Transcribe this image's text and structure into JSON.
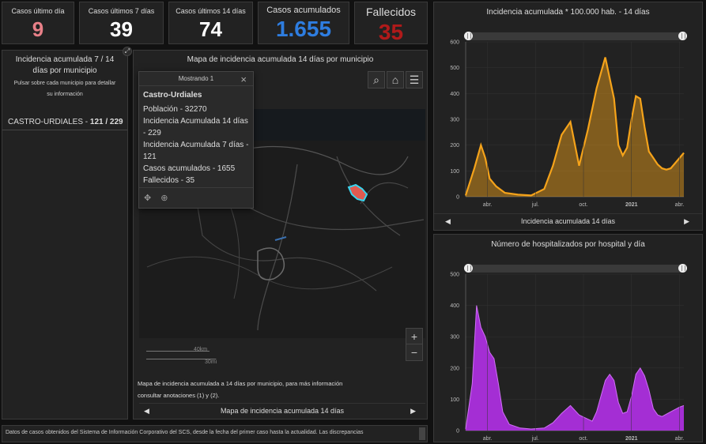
{
  "kpis": [
    {
      "label": "Casos último día",
      "value": "9",
      "color": "#e88088"
    },
    {
      "label": "Casos últimos 7 días",
      "value": "39",
      "color": "#ffffff"
    },
    {
      "label": "Casos últimos 14 días",
      "value": "74",
      "color": "#ffffff"
    },
    {
      "label": "Casos acumulados",
      "value": "1.655",
      "color": "#2e7de0"
    },
    {
      "label": "Fallecidos",
      "value": "35",
      "color": "#b01a1a"
    }
  ],
  "left_panel": {
    "title": "Incidencia acumulada 7 / 14 días por municipio",
    "subtitle": "Pulsar sobre cada municipio para detallar su información",
    "row_name": "CASTRO-URDIALES - ",
    "row_value": "121 / 229"
  },
  "map": {
    "title": "Mapa de incidencia acumulada 14 días por municipio",
    "popup": {
      "header": "Mostrando 1",
      "name": "Castro-Urdiales",
      "lines": [
        "Población - 32270",
        "Incidencia Acumulada 14 días - 229",
        "Incidencia Acumulada 7 días - 121",
        "Casos acumulados - 1655",
        "Fallecidos - 35"
      ]
    },
    "scale_km": "40km",
    "scale_mi": "30mi",
    "description": "Mapa de incidencia acumulada a 14 días por municipio, para más información consultar anotaciones (1) y (2).",
    "footer_label": "Mapa de incidencia acumulada 14 días",
    "zoom_in": "+",
    "zoom_out": "−"
  },
  "bottom_note": "Datos de casos obtenidos del Sistema de Información Corporativo del SCS, desde la fecha del primer caso hasta la actualidad. Las discrepancias",
  "chart_top_footer": "Incidencia acumulada 14 días",
  "chart_data": [
    {
      "type": "area",
      "title": "Incidencia acumulada * 100.000 hab. - 14 días",
      "color": "#f5a31a",
      "ylim": [
        0,
        600
      ],
      "yticks": [
        0,
        100,
        200,
        300,
        400,
        500,
        600
      ],
      "xtick_labels": [
        "abr.",
        "jul.",
        "oct.",
        "2021",
        "abr."
      ],
      "x": [
        0,
        4,
        7,
        9,
        11,
        14,
        18,
        24,
        30,
        36,
        40,
        44,
        48,
        52,
        56,
        60,
        64,
        68,
        70,
        72,
        74,
        76,
        78,
        80,
        82,
        84,
        86,
        88,
        90,
        92,
        94,
        96,
        98,
        100
      ],
      "values": [
        5,
        110,
        200,
        150,
        70,
        40,
        15,
        8,
        5,
        30,
        120,
        240,
        290,
        120,
        260,
        420,
        540,
        380,
        200,
        160,
        190,
        300,
        390,
        380,
        270,
        175,
        150,
        125,
        110,
        105,
        110,
        130,
        150,
        170
      ]
    },
    {
      "type": "area",
      "title": "Número de hospitalizados por hospital y día",
      "color": "#b330e8",
      "color_light": "#d070f5",
      "ylim": [
        0,
        500
      ],
      "yticks": [
        0,
        100,
        200,
        300,
        400,
        500
      ],
      "xtick_labels": [
        "abr.",
        "jul.",
        "oct.",
        "2021",
        "abr."
      ],
      "x": [
        0,
        3,
        5,
        7,
        9,
        11,
        13,
        15,
        17,
        20,
        25,
        30,
        36,
        40,
        44,
        48,
        52,
        55,
        58,
        60,
        62,
        64,
        66,
        68,
        70,
        72,
        74,
        76,
        78,
        80,
        82,
        84,
        86,
        88,
        90,
        94,
        98,
        100
      ],
      "values": [
        5,
        150,
        400,
        330,
        300,
        250,
        230,
        150,
        60,
        20,
        8,
        5,
        8,
        25,
        55,
        80,
        50,
        40,
        30,
        60,
        110,
        160,
        180,
        160,
        90,
        55,
        60,
        110,
        180,
        200,
        175,
        130,
        70,
        50,
        45,
        60,
        75,
        80
      ]
    }
  ]
}
